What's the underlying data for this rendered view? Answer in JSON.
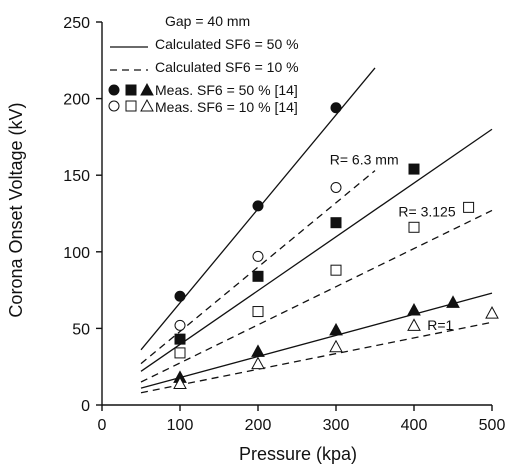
{
  "chart_data": {
    "type": "scatter",
    "xlabel": "Pressure (kpa)",
    "ylabel": "Corona Onset Voltage (kV)",
    "xlim": [
      0,
      500
    ],
    "ylim": [
      0,
      250
    ],
    "xticks": [
      0,
      100,
      200,
      300,
      400,
      500
    ],
    "yticks": [
      0,
      50,
      100,
      150,
      200,
      250
    ],
    "grid": false,
    "legend_position": "top-left",
    "legend": {
      "gap_label": "Gap = 40 mm",
      "entries": [
        {
          "label": "Calculated SF6 = 50 %",
          "style": "solid-line"
        },
        {
          "label": "Calculated SF6 = 10 %",
          "style": "dashed-line"
        },
        {
          "label": "Meas. SF6 = 50 % [14]",
          "style": "filled-markers"
        },
        {
          "label": "Meas. SF6 = 10 % [14]",
          "style": "hollow-markers"
        }
      ]
    },
    "annotations": [
      {
        "text": "R= 6.3 mm",
        "at": [
          292,
          157
        ]
      },
      {
        "text": "R= 3.125",
        "at": [
          380,
          123
        ]
      },
      {
        "text": "R=1",
        "at": [
          417,
          49
        ]
      }
    ],
    "lines": [
      {
        "group": "R=6.3",
        "sf6": "50 %",
        "style": "solid",
        "x": [
          50,
          350
        ],
        "y": [
          36,
          220
        ]
      },
      {
        "group": "R=6.3",
        "sf6": "10 %",
        "style": "dashed",
        "x": [
          50,
          350
        ],
        "y": [
          27,
          153
        ]
      },
      {
        "group": "R=3.125",
        "sf6": "50 %",
        "style": "solid",
        "x": [
          50,
          500
        ],
        "y": [
          22,
          180
        ]
      },
      {
        "group": "R=3.125",
        "sf6": "10 %",
        "style": "dashed",
        "x": [
          50,
          500
        ],
        "y": [
          15,
          127
        ]
      },
      {
        "group": "R=1",
        "sf6": "50 %",
        "style": "solid",
        "x": [
          50,
          500
        ],
        "y": [
          11,
          73
        ]
      },
      {
        "group": "R=1",
        "sf6": "10 %",
        "style": "dashed",
        "x": [
          50,
          500
        ],
        "y": [
          8,
          54
        ]
      }
    ],
    "series": [
      {
        "group": "R=6.3",
        "sf6": "50 %",
        "marker": "circle",
        "filled": true,
        "x": [
          100,
          200,
          300
        ],
        "y": [
          71,
          130,
          194
        ]
      },
      {
        "group": "R=6.3",
        "sf6": "10 %",
        "marker": "circle",
        "filled": false,
        "x": [
          100,
          200,
          300
        ],
        "y": [
          52,
          97,
          142
        ]
      },
      {
        "group": "R=3.125",
        "sf6": "50 %",
        "marker": "square",
        "filled": true,
        "x": [
          100,
          200,
          300,
          400
        ],
        "y": [
          43,
          84,
          119,
          154
        ]
      },
      {
        "group": "R=3.125",
        "sf6": "10 %",
        "marker": "square",
        "filled": false,
        "x": [
          100,
          200,
          300,
          400,
          470
        ],
        "y": [
          34,
          61,
          88,
          116,
          129
        ]
      },
      {
        "group": "R=1",
        "sf6": "50 %",
        "marker": "triangle",
        "filled": true,
        "x": [
          100,
          200,
          300,
          400,
          450
        ],
        "y": [
          18,
          35,
          49,
          62,
          67
        ]
      },
      {
        "group": "R=1",
        "sf6": "10 %",
        "marker": "triangle",
        "filled": false,
        "x": [
          100,
          200,
          300,
          400,
          500
        ],
        "y": [
          14,
          27,
          38,
          52,
          60
        ]
      }
    ]
  }
}
